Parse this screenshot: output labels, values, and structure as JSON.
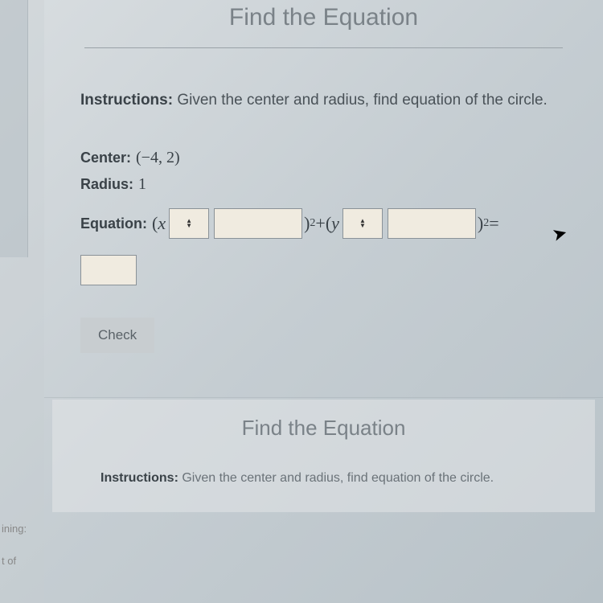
{
  "sidebar": {
    "label1": "ining:",
    "label2": "t of"
  },
  "header": {
    "title": "Find the Equation"
  },
  "instructions": {
    "label": "Instructions:",
    "text": " Given the center and radius, find equation of the circle."
  },
  "problem": {
    "center_label": "Center:",
    "center_value": "(−4, 2)",
    "radius_label": "Radius:",
    "radius_value": "1",
    "equation_label": "Equation:",
    "paren_open": "(",
    "var_x": "x",
    "var_y": "y",
    "squared_plus": ")",
    "sup2": "2",
    "plus": "+(",
    "equals": "="
  },
  "buttons": {
    "check": "Check"
  },
  "second": {
    "title": "Find the Equation",
    "instructions_label": "Instructions:",
    "instructions_text": " Given the center and radius, find equation of the circle."
  },
  "styling": {
    "bg_gradient_start": "#d8dde0",
    "bg_gradient_end": "#b8c2c8",
    "title_color": "#7a8288",
    "text_color": "#4a5258",
    "input_bg": "#f0ebe0",
    "input_border": "#8a9298",
    "button_bg": "#c8cdd0",
    "button_text": "#5a6268"
  }
}
